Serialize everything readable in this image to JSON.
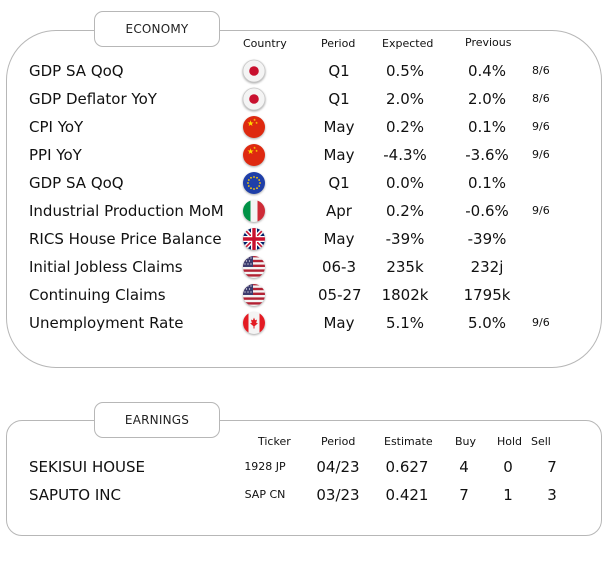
{
  "economy": {
    "tab_label": "ECONOMY",
    "headers": {
      "country": "Country",
      "period": "Period",
      "expected": "Expected",
      "previous": "Previous"
    },
    "rows": [
      {
        "name": "GDP SA QoQ",
        "country": "japan-flag-icon",
        "period": "Q1",
        "expected": "0.5%",
        "previous": "0.4%",
        "date": "8/6"
      },
      {
        "name": "GDP Deflator YoY",
        "country": "japan-flag-icon",
        "period": "Q1",
        "expected": "2.0%",
        "previous": "2.0%",
        "date": "8/6"
      },
      {
        "name": "CPI YoY",
        "country": "china-flag-icon",
        "period": "May",
        "expected": "0.2%",
        "previous": "0.1%",
        "date": "9/6"
      },
      {
        "name": "PPI YoY",
        "country": "china-flag-icon",
        "period": "May",
        "expected": "-4.3%",
        "previous": "-3.6%",
        "date": "9/6"
      },
      {
        "name": "GDP SA QoQ",
        "country": "eu-flag-icon",
        "period": "Q1",
        "expected": "0.0%",
        "previous": "0.1%",
        "date": ""
      },
      {
        "name": "Industrial Production MoM",
        "country": "italy-flag-icon",
        "period": "Apr",
        "expected": "0.2%",
        "previous": "-0.6%",
        "date": "9/6"
      },
      {
        "name": "RICS House Price Balance",
        "country": "uk-flag-icon",
        "period": "May",
        "expected": "-39%",
        "previous": "-39%",
        "date": ""
      },
      {
        "name": "Initial Jobless Claims",
        "country": "us-flag-icon",
        "period": "06-3",
        "expected": "235k",
        "previous": "232j",
        "date": ""
      },
      {
        "name": "Continuing Claims",
        "country": "us-flag-icon",
        "period": "05-27",
        "expected": "1802k",
        "previous": "1795k",
        "date": ""
      },
      {
        "name": "Unemployment Rate",
        "country": "canada-flag-icon",
        "period": "May",
        "expected": "5.1%",
        "previous": "5.0%",
        "date": "9/6"
      }
    ]
  },
  "earnings": {
    "tab_label": "EARNINGS",
    "headers": {
      "ticker": "Ticker",
      "period": "Period",
      "estimate": "Estimate",
      "buy": "Buy",
      "hold": "Hold",
      "sell": "Sell"
    },
    "rows": [
      {
        "name": "SEKISUI HOUSE",
        "ticker": "1928 JP",
        "period": "04/23",
        "estimate": "0.627",
        "buy": "4",
        "hold": "0",
        "sell": "7"
      },
      {
        "name": "SAPUTO INC",
        "ticker": "SAP CN",
        "period": "03/23",
        "estimate": "0.421",
        "buy": "7",
        "hold": "1",
        "sell": "3"
      }
    ]
  }
}
